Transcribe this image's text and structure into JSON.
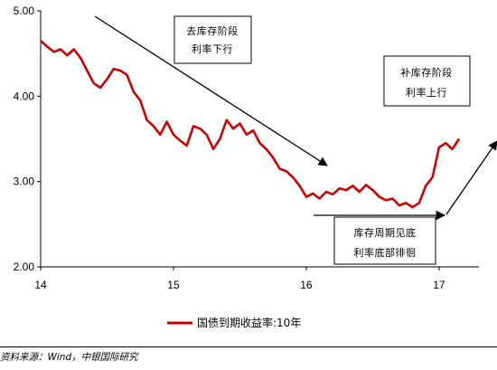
{
  "chart_data": {
    "type": "line",
    "x_ticks": [
      "14",
      "15",
      "16",
      "17"
    ],
    "y_ticks": [
      "5.00",
      "4.00",
      "3.00",
      "2.00"
    ],
    "ylim": [
      2.0,
      5.0
    ],
    "xlim": [
      14.0,
      17.3
    ],
    "grid": false,
    "legend_position": "bottom",
    "series": [
      {
        "name": "国债到期收益率:10年",
        "color": "#cc0000",
        "x": [
          14.0,
          14.05,
          14.1,
          14.15,
          14.2,
          14.25,
          14.3,
          14.35,
          14.4,
          14.45,
          14.5,
          14.55,
          14.6,
          14.65,
          14.7,
          14.75,
          14.8,
          14.85,
          14.9,
          14.95,
          15.0,
          15.05,
          15.1,
          15.15,
          15.2,
          15.25,
          15.3,
          15.35,
          15.4,
          15.45,
          15.5,
          15.55,
          15.6,
          15.65,
          15.7,
          15.75,
          15.8,
          15.85,
          15.9,
          15.95,
          16.0,
          16.05,
          16.1,
          16.15,
          16.2,
          16.25,
          16.3,
          16.35,
          16.4,
          16.45,
          16.5,
          16.55,
          16.6,
          16.65,
          16.7,
          16.75,
          16.8,
          16.85,
          16.9,
          16.95,
          17.0,
          17.05,
          17.1,
          17.15
        ],
        "values": [
          4.65,
          4.58,
          4.52,
          4.55,
          4.48,
          4.55,
          4.45,
          4.3,
          4.15,
          4.1,
          4.2,
          4.32,
          4.3,
          4.25,
          4.05,
          3.95,
          3.72,
          3.65,
          3.55,
          3.7,
          3.55,
          3.48,
          3.42,
          3.65,
          3.62,
          3.55,
          3.38,
          3.5,
          3.72,
          3.62,
          3.68,
          3.55,
          3.6,
          3.45,
          3.38,
          3.28,
          3.15,
          3.12,
          3.05,
          2.95,
          2.82,
          2.86,
          2.8,
          2.88,
          2.85,
          2.92,
          2.9,
          2.95,
          2.88,
          2.96,
          2.9,
          2.82,
          2.78,
          2.8,
          2.72,
          2.75,
          2.7,
          2.75,
          2.95,
          3.05,
          3.4,
          3.45,
          3.38,
          3.5
        ]
      }
    ]
  },
  "annotations": {
    "box1": {
      "line1": "去库存阶段",
      "line2": "利率下行"
    },
    "box2": {
      "line1": "补库存阶段",
      "line2": "利率上行"
    },
    "box3": {
      "line1": "库存周期见底",
      "line2": "利率底部徘徊"
    }
  },
  "legend": {
    "label": "国债到期收益率:10年"
  },
  "source": "资料来源：Wind，中银国际研究"
}
